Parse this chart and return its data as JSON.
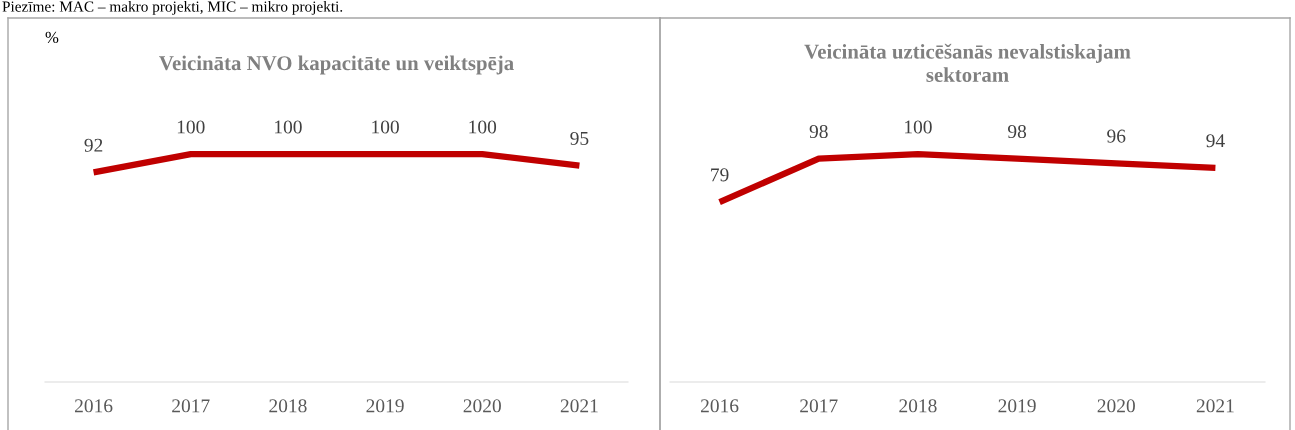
{
  "chart_data": [
    {
      "type": "line",
      "title": "Veicināta NVO kapacitāte un veiktspēja",
      "ylabel": "%",
      "categories": [
        "2016",
        "2017",
        "2018",
        "2019",
        "2020",
        "2021"
      ],
      "series": [
        {
          "color": "#c00000",
          "values": [
            92,
            100,
            100,
            100,
            100,
            95
          ]
        }
      ],
      "data_labels": true,
      "tick_labels": "x",
      "grid": false,
      "legend": false,
      "marker": "none",
      "line_style": "solid",
      "annotations": [
        "Piezīme: MAC – makro projekti, MIC – mikro projekti."
      ]
    },
    {
      "type": "line",
      "title": "Veicināta uzticēšanās nevalstiskajam\nsektoram",
      "categories": [
        "2016",
        "2017",
        "2018",
        "2019",
        "2020",
        "2021"
      ],
      "series": [
        {
          "color": "#c00000",
          "values": [
            79,
            98,
            100,
            98,
            96,
            94
          ]
        }
      ],
      "data_labels": true,
      "tick_labels": "x",
      "grid": false,
      "legend": false,
      "marker": "none",
      "line_style": "solid"
    }
  ]
}
